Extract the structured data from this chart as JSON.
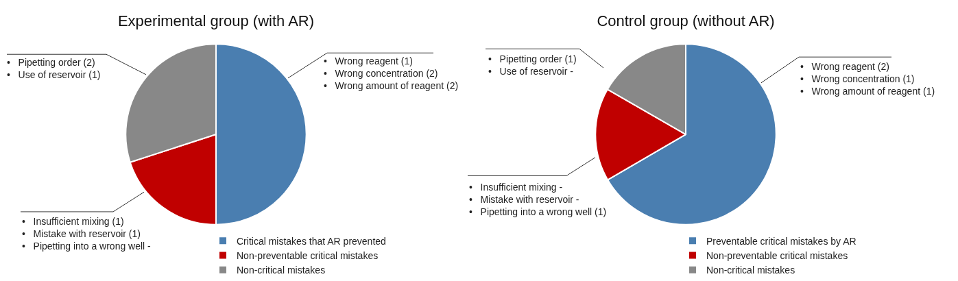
{
  "chart_data": [
    {
      "type": "pie",
      "title": "Experimental group (with AR)",
      "categories": [
        "Critical mistakes that AR prevented",
        "Non-preventable critical mistakes",
        "Non-critical mistakes"
      ],
      "values": [
        50,
        20,
        30
      ],
      "colors": [
        "#4a7eb0",
        "#c00000",
        "#888888"
      ],
      "legend": "bottom right",
      "annotations": [
        "•   Wrong reagent (1)\n•   Wrong concentration (2)\n•   Wrong amount of reagent (2)",
        "•   Insufficient mixing (1)\n•   Mistake with reservoir (1)\n•   Pipetting into a wrong well -",
        "•   Pipetting order (2)\n•   Use of reservoir (1)"
      ]
    },
    {
      "type": "pie",
      "title": "Control group (without AR)",
      "categories": [
        "Preventable critical mistakes by AR",
        "Non-preventable critical mistakes",
        "Non-critical mistakes"
      ],
      "values": [
        66.6,
        16.7,
        16.7
      ],
      "colors": [
        "#4a7eb0",
        "#c00000",
        "#888888"
      ],
      "legend": "bottom right",
      "annotations": [
        "•   Wrong reagent (2)\n•   Wrong concentration (1)\n•   Wrong amount of reagent (1)",
        "•   Insufficient mixing -\n•   Mistake with reservoir -\n•   Pipetting into a wrong well (1)",
        "•   Pipetting order (1)\n•   Use of reservoir -"
      ]
    }
  ]
}
